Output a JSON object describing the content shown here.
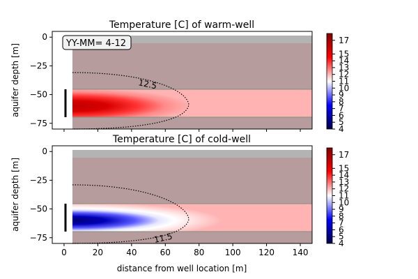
{
  "chart_data": [
    {
      "type": "heatmap",
      "title": "Temperature [C] of warm-well",
      "xlabel": "",
      "ylabel": "aquifer depth [m]",
      "xlim": [
        -7,
        147
      ],
      "ylim": [
        -80,
        5
      ],
      "xticks": [
        0,
        20,
        40,
        60,
        80,
        100,
        120,
        140
      ],
      "xtick_labels_visible": false,
      "yticks": [
        0,
        -25,
        -50,
        -75
      ],
      "ytick_labels": [
        "0",
        "−25",
        "−50",
        "−75"
      ],
      "annotation": "YY-MM= 4-12",
      "contour": {
        "level": 12.5,
        "label": "12.5",
        "style": "dotted"
      },
      "aquifer_layer": {
        "top": -45,
        "bottom": -70
      },
      "well_screen": {
        "x": 0,
        "top": -45,
        "bottom": -70
      },
      "domain": {
        "x_start": 5,
        "x_end": 145,
        "top": -5,
        "bottom": -80
      },
      "plume": {
        "temperature_core": 17.5,
        "temperature_background": 12,
        "extent_m": 62
      },
      "colorbar": {
        "min": 4,
        "max": 18,
        "ticks": [
          17,
          15,
          14,
          13,
          12,
          11,
          10,
          9,
          8,
          7,
          6,
          5,
          4
        ],
        "tick_labels": [
          "17",
          "15",
          "14",
          "13",
          "12",
          "11",
          "10",
          "9",
          "8",
          "7",
          "6",
          "5",
          "4"
        ],
        "colormap": "seismic"
      }
    },
    {
      "type": "heatmap",
      "title": "Temperature [C] of cold-well",
      "xlabel": "distance from well location [m]",
      "ylabel": "aquifer depth [m]",
      "xlim": [
        -7,
        147
      ],
      "ylim": [
        -80,
        5
      ],
      "xticks": [
        0,
        20,
        40,
        60,
        80,
        100,
        120,
        140
      ],
      "xtick_labels": [
        "0",
        "20",
        "40",
        "60",
        "80",
        "100",
        "120",
        "140"
      ],
      "yticks": [
        0,
        -25,
        -50,
        -75
      ],
      "ytick_labels": [
        "0",
        "−25",
        "−50",
        "−75"
      ],
      "contour": {
        "level": 11.5,
        "label": "11.5",
        "style": "dotted"
      },
      "aquifer_layer": {
        "top": -45,
        "bottom": -70
      },
      "well_screen": {
        "x": 0,
        "top": -45,
        "bottom": -70
      },
      "domain": {
        "x_start": 5,
        "x_end": 145,
        "top": -5,
        "bottom": -80
      },
      "plume": {
        "temperature_core": 4.5,
        "temperature_background": 12,
        "extent_m": 62
      },
      "colorbar": {
        "min": 4,
        "max": 18,
        "ticks": [
          17,
          15,
          14,
          13,
          12,
          11,
          10,
          9,
          8,
          7,
          6,
          5,
          4
        ],
        "tick_labels": [
          "17",
          "15",
          "14",
          "13",
          "12",
          "11",
          "10",
          "9",
          "8",
          "7",
          "6",
          "5",
          "4"
        ],
        "colormap": "seismic"
      }
    }
  ],
  "colors": {
    "clay_layer": "#b69c9c",
    "top_band": "#b3b3b3",
    "aquifer_background": "#ffb3b3",
    "layer_boundary": "#7f8f7f",
    "warm_core": "#c80000",
    "cold_core": "#00007f",
    "mid": "#ffffff"
  }
}
